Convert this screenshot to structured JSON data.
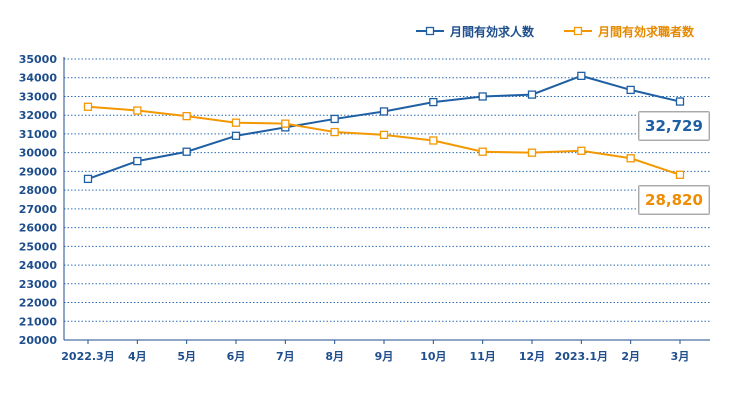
{
  "chart_data": {
    "type": "line",
    "categories": [
      "2022.3月",
      "4月",
      "5月",
      "6月",
      "7月",
      "8月",
      "9月",
      "10月",
      "11月",
      "12月",
      "2023.1月",
      "2月",
      "3月"
    ],
    "series": [
      {
        "name": "月間有効求人数",
        "color": "#1f5fa3",
        "values": [
          28600,
          29550,
          30050,
          30900,
          31350,
          31800,
          32200,
          32700,
          33000,
          33100,
          34100,
          33350,
          32729
        ]
      },
      {
        "name": "月間有効求職者数",
        "color": "#f39800",
        "values": [
          32450,
          32250,
          31950,
          31600,
          31550,
          31100,
          30950,
          30650,
          30050,
          30000,
          30100,
          29700,
          28820
        ]
      }
    ],
    "ylim": [
      20000,
      35000
    ],
    "yticks": [
      20000,
      21000,
      22000,
      23000,
      24000,
      25000,
      26000,
      27000,
      28000,
      29000,
      30000,
      31000,
      32000,
      33000,
      34000,
      35000
    ],
    "grid": true,
    "legend_position": "top-right",
    "callouts": [
      {
        "label": "32,729",
        "color": "#1f5fa3"
      },
      {
        "label": "28,820",
        "color": "#f08c00"
      }
    ]
  }
}
